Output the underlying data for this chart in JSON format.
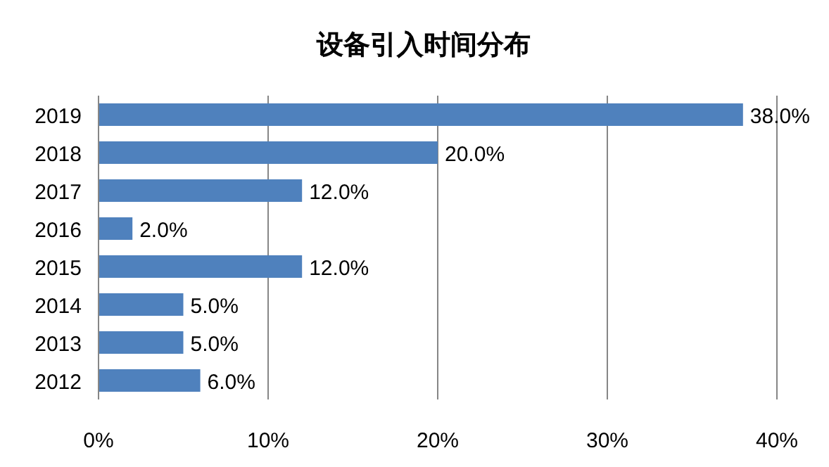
{
  "chart_data": {
    "type": "bar",
    "orientation": "horizontal",
    "title": "设备引入时间分布",
    "categories": [
      "2019",
      "2018",
      "2017",
      "2016",
      "2015",
      "2014",
      "2013",
      "2012"
    ],
    "values": [
      38,
      20,
      12,
      2,
      12,
      5,
      5,
      6
    ],
    "value_labels": [
      "38.0%",
      "20.0%",
      "12.0%",
      "2.0%",
      "12.0%",
      "5.0%",
      "5.0%",
      "6.0%"
    ],
    "color": "#4f81bd",
    "xlim": [
      0,
      40
    ],
    "xticks": [
      {
        "value": 0,
        "label": "0%"
      },
      {
        "value": 10,
        "label": "10%"
      },
      {
        "value": 20,
        "label": "20%"
      },
      {
        "value": 30,
        "label": "30%"
      },
      {
        "value": 40,
        "label": "40%"
      }
    ],
    "grid": "x"
  }
}
